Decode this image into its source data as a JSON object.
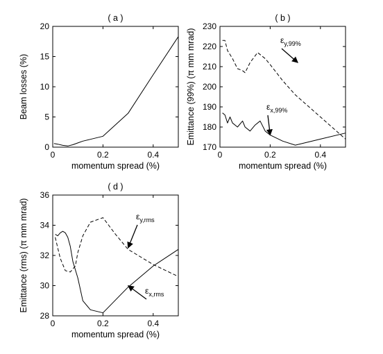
{
  "chart_data": [
    {
      "type": "line",
      "title": "( a )",
      "xlabel": "momentum spread (%)",
      "ylabel": "Beam losses (%)",
      "xlim": [
        0,
        0.5
      ],
      "ylim": [
        0,
        20
      ],
      "xticks": [
        0,
        0.2,
        0.4
      ],
      "xtick_labels": [
        "0",
        "0.2",
        "0.4"
      ],
      "yticks": [
        0,
        5,
        10,
        15,
        20
      ],
      "ytick_labels": [
        "0",
        "5",
        "10",
        "15",
        "20"
      ],
      "grid": false,
      "series": [
        {
          "style": "solid",
          "x": [
            0.005,
            0.02,
            0.04,
            0.06,
            0.08,
            0.1,
            0.12,
            0.15,
            0.2,
            0.3,
            0.4,
            0.5
          ],
          "y": [
            0.6,
            0.5,
            0.3,
            0.2,
            0.4,
            0.7,
            1.0,
            1.3,
            1.8,
            5.6,
            12.0,
            18.3
          ]
        }
      ],
      "annotations": []
    },
    {
      "type": "line",
      "title": "( b )",
      "xlabel": "momentum spread (%)",
      "ylabel": "Emittance (99%) (π mm mrad)",
      "xlim": [
        0,
        0.5
      ],
      "ylim": [
        170,
        230
      ],
      "xticks": [
        0,
        0.2,
        0.4
      ],
      "xtick_labels": [
        "0",
        "0.2",
        "0.4"
      ],
      "yticks": [
        170,
        180,
        190,
        200,
        210,
        220,
        230
      ],
      "ytick_labels": [
        "170",
        "180",
        "190",
        "200",
        "210",
        "220",
        "230"
      ],
      "grid": false,
      "series": [
        {
          "style": "dashed",
          "x": [
            0.01,
            0.02,
            0.03,
            0.05,
            0.07,
            0.09,
            0.1,
            0.12,
            0.15,
            0.18,
            0.2,
            0.25,
            0.3,
            0.4,
            0.5
          ],
          "y": [
            223,
            223,
            218,
            214,
            209,
            208,
            207,
            212,
            217,
            214,
            211,
            203,
            196,
            185,
            174
          ]
        },
        {
          "style": "solid",
          "x": [
            0.01,
            0.02,
            0.03,
            0.04,
            0.05,
            0.07,
            0.09,
            0.1,
            0.12,
            0.14,
            0.16,
            0.18,
            0.2,
            0.25,
            0.3,
            0.4,
            0.5
          ],
          "y": [
            187,
            186,
            182,
            185,
            182,
            180,
            183,
            180,
            178,
            181,
            183,
            178,
            176,
            173,
            171,
            174,
            177
          ]
        }
      ],
      "annotations": [
        {
          "greek": "ε",
          "sub": "y,99%",
          "arrow_to": [
            0.31,
            212
          ]
        },
        {
          "greek": "ε",
          "sub": "x,99%",
          "arrow_to": [
            0.2,
            176
          ]
        }
      ]
    },
    {
      "type": "line",
      "title": "( d )",
      "xlabel": "momentum spread (%)",
      "ylabel": "Emittance (rms) (π mm mrad)",
      "xlim": [
        0,
        0.5
      ],
      "ylim": [
        28,
        36
      ],
      "xticks": [
        0,
        0.2,
        0.4
      ],
      "xtick_labels": [
        "0",
        "0.2",
        "0.4"
      ],
      "yticks": [
        28,
        30,
        32,
        34,
        36
      ],
      "ytick_labels": [
        "28",
        "30",
        "32",
        "34",
        "36"
      ],
      "grid": false,
      "series": [
        {
          "style": "dashed",
          "x": [
            0.01,
            0.02,
            0.03,
            0.05,
            0.07,
            0.09,
            0.1,
            0.12,
            0.15,
            0.2,
            0.25,
            0.3,
            0.4,
            0.5
          ],
          "y": [
            33.2,
            32.5,
            31.8,
            31.0,
            30.9,
            31.3,
            32.2,
            33.3,
            34.2,
            34.5,
            33.4,
            32.4,
            31.4,
            30.6
          ]
        },
        {
          "style": "solid",
          "x": [
            0.01,
            0.02,
            0.03,
            0.04,
            0.05,
            0.06,
            0.07,
            0.08,
            0.1,
            0.12,
            0.15,
            0.2,
            0.3,
            0.4,
            0.5
          ],
          "y": [
            33.4,
            33.3,
            33.5,
            33.6,
            33.5,
            33.2,
            32.6,
            31.6,
            30.5,
            29.0,
            28.4,
            28.2,
            29.9,
            31.3,
            32.4
          ]
        }
      ],
      "annotations": [
        {
          "greek": "ε",
          "sub": "y,rms",
          "arrow_to": [
            0.3,
            32.5
          ]
        },
        {
          "greek": "ε",
          "sub": "x,rms",
          "arrow_to": [
            0.3,
            30.0
          ]
        }
      ]
    }
  ]
}
